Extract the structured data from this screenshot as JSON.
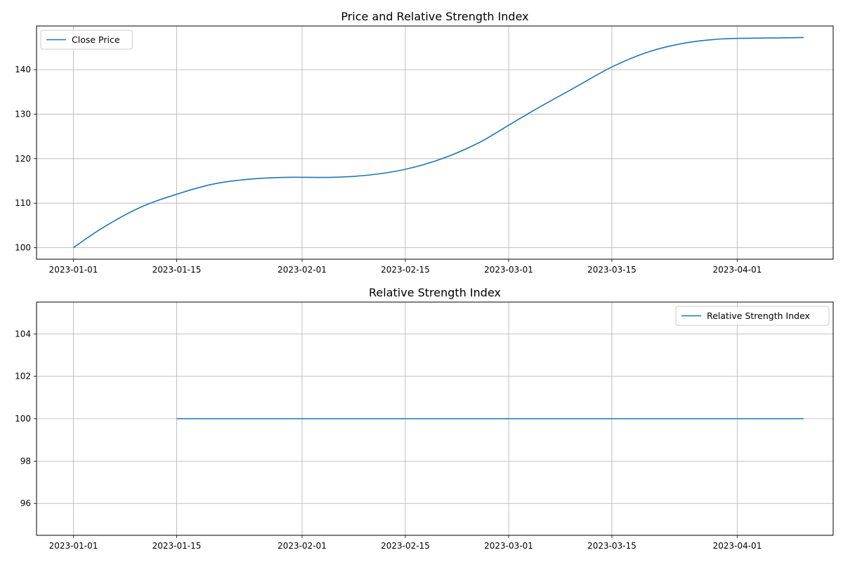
{
  "chart_data": [
    {
      "type": "line",
      "title": "Price and Relative Strength Index",
      "xlabel": "",
      "ylabel": "",
      "x_tick_labels": [
        "2023-01-01",
        "2023-01-15",
        "2023-02-01",
        "2023-02-15",
        "2023-03-01",
        "2023-03-15",
        "2023-04-01"
      ],
      "y_tick_labels": [
        "100",
        "110",
        "120",
        "130",
        "140"
      ],
      "ylim": [
        97.4,
        149.8
      ],
      "xlim": [
        "2022-12-27",
        "2023-04-14"
      ],
      "grid": true,
      "legend_position": "upper left",
      "series": [
        {
          "name": "Close Price",
          "color": "#1f77b4",
          "x": [
            "2023-01-01",
            "2023-01-05",
            "2023-01-10",
            "2023-01-15",
            "2023-01-20",
            "2023-01-25",
            "2023-01-30",
            "2023-02-05",
            "2023-02-10",
            "2023-02-15",
            "2023-02-20",
            "2023-02-25",
            "2023-03-01",
            "2023-03-05",
            "2023-03-10",
            "2023-03-15",
            "2023-03-20",
            "2023-03-25",
            "2023-03-30",
            "2023-04-05",
            "2023-04-10"
          ],
          "values": [
            100.0,
            104.5,
            109.0,
            112.0,
            114.3,
            115.4,
            115.8,
            115.8,
            116.3,
            117.6,
            120.0,
            123.6,
            127.5,
            131.4,
            136.0,
            140.6,
            144.0,
            146.0,
            146.9,
            147.1,
            147.2
          ]
        }
      ]
    },
    {
      "type": "line",
      "title": "Relative Strength Index",
      "xlabel": "",
      "ylabel": "",
      "x_tick_labels": [
        "2023-01-01",
        "2023-01-15",
        "2023-02-01",
        "2023-02-15",
        "2023-03-01",
        "2023-03-15",
        "2023-04-01"
      ],
      "y_tick_labels": [
        "96",
        "98",
        "100",
        "102",
        "104"
      ],
      "ylim": [
        94.5,
        105.5
      ],
      "xlim": [
        "2022-12-27",
        "2023-04-14"
      ],
      "grid": true,
      "legend_position": "upper right",
      "series": [
        {
          "name": "Relative Strength Index",
          "color": "#1f77b4",
          "x": [
            "2023-01-15",
            "2023-02-01",
            "2023-02-15",
            "2023-03-01",
            "2023-03-15",
            "2023-04-01",
            "2023-04-10"
          ],
          "values": [
            100,
            100,
            100,
            100,
            100,
            100,
            100
          ]
        }
      ]
    }
  ]
}
